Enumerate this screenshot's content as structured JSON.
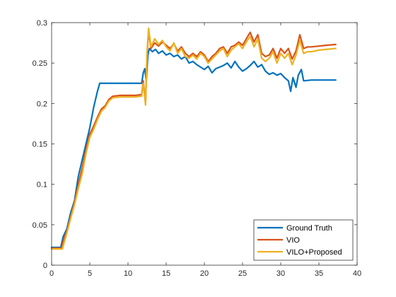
{
  "chart_data": {
    "type": "line",
    "title": "",
    "xlabel": "",
    "ylabel": "",
    "xlim": [
      0,
      40
    ],
    "ylim": [
      0,
      0.3
    ],
    "xticks": [
      0,
      5,
      10,
      15,
      20,
      25,
      30,
      35,
      40
    ],
    "yticks": [
      0,
      0.05,
      0.1,
      0.15,
      0.2,
      0.25,
      0.3
    ],
    "grid": false,
    "legend_position": "bottom-right",
    "series": [
      {
        "name": "Ground Truth",
        "color": "#0072BD",
        "points": [
          [
            0.0,
            0.022
          ],
          [
            1.0,
            0.022
          ],
          [
            1.2,
            0.022
          ],
          [
            1.5,
            0.035
          ],
          [
            2.0,
            0.045
          ],
          [
            2.5,
            0.065
          ],
          [
            3.0,
            0.08
          ],
          [
            3.5,
            0.11
          ],
          [
            4.0,
            0.13
          ],
          [
            4.5,
            0.15
          ],
          [
            5.0,
            0.17
          ],
          [
            5.5,
            0.195
          ],
          [
            6.0,
            0.215
          ],
          [
            6.3,
            0.225
          ],
          [
            7.0,
            0.225
          ],
          [
            8.0,
            0.225
          ],
          [
            9.0,
            0.225
          ],
          [
            10.0,
            0.225
          ],
          [
            11.0,
            0.225
          ],
          [
            11.8,
            0.225
          ],
          [
            12.0,
            0.238
          ],
          [
            12.2,
            0.243
          ],
          [
            12.4,
            0.228
          ],
          [
            12.6,
            0.26
          ],
          [
            12.8,
            0.268
          ],
          [
            13.2,
            0.264
          ],
          [
            13.6,
            0.267
          ],
          [
            14.0,
            0.262
          ],
          [
            14.5,
            0.265
          ],
          [
            15.0,
            0.26
          ],
          [
            15.5,
            0.262
          ],
          [
            16.0,
            0.258
          ],
          [
            16.5,
            0.26
          ],
          [
            17.0,
            0.255
          ],
          [
            17.5,
            0.258
          ],
          [
            18.0,
            0.25
          ],
          [
            18.5,
            0.252
          ],
          [
            19.0,
            0.248
          ],
          [
            19.5,
            0.245
          ],
          [
            20.0,
            0.242
          ],
          [
            20.5,
            0.246
          ],
          [
            21.0,
            0.238
          ],
          [
            21.5,
            0.243
          ],
          [
            22.0,
            0.245
          ],
          [
            22.5,
            0.247
          ],
          [
            23.0,
            0.25
          ],
          [
            23.5,
            0.244
          ],
          [
            24.0,
            0.252
          ],
          [
            24.5,
            0.245
          ],
          [
            25.0,
            0.24
          ],
          [
            25.5,
            0.243
          ],
          [
            26.0,
            0.247
          ],
          [
            26.5,
            0.252
          ],
          [
            27.0,
            0.245
          ],
          [
            27.5,
            0.248
          ],
          [
            28.0,
            0.24
          ],
          [
            28.5,
            0.236
          ],
          [
            29.0,
            0.238
          ],
          [
            29.5,
            0.235
          ],
          [
            30.0,
            0.237
          ],
          [
            30.5,
            0.232
          ],
          [
            31.0,
            0.228
          ],
          [
            31.3,
            0.215
          ],
          [
            31.6,
            0.232
          ],
          [
            32.0,
            0.22
          ],
          [
            32.3,
            0.235
          ],
          [
            32.7,
            0.242
          ],
          [
            33.0,
            0.228
          ],
          [
            34.0,
            0.229
          ],
          [
            35.0,
            0.229
          ],
          [
            36.0,
            0.229
          ],
          [
            37.2,
            0.229
          ]
        ]
      },
      {
        "name": "VIO",
        "color": "#D95319",
        "points": [
          [
            0.0,
            0.021
          ],
          [
            1.0,
            0.021
          ],
          [
            1.3,
            0.021
          ],
          [
            1.6,
            0.033
          ],
          [
            2.0,
            0.042
          ],
          [
            2.5,
            0.06
          ],
          [
            3.0,
            0.078
          ],
          [
            3.5,
            0.1
          ],
          [
            4.0,
            0.12
          ],
          [
            4.5,
            0.143
          ],
          [
            5.0,
            0.162
          ],
          [
            5.5,
            0.172
          ],
          [
            6.0,
            0.183
          ],
          [
            6.5,
            0.193
          ],
          [
            7.0,
            0.197
          ],
          [
            7.5,
            0.205
          ],
          [
            8.0,
            0.209
          ],
          [
            9.0,
            0.21
          ],
          [
            10.0,
            0.21
          ],
          [
            11.0,
            0.21
          ],
          [
            11.8,
            0.211
          ],
          [
            12.0,
            0.228
          ],
          [
            12.3,
            0.2
          ],
          [
            12.5,
            0.262
          ],
          [
            12.7,
            0.29
          ],
          [
            13.0,
            0.268
          ],
          [
            13.5,
            0.275
          ],
          [
            14.0,
            0.271
          ],
          [
            14.5,
            0.276
          ],
          [
            15.0,
            0.272
          ],
          [
            15.5,
            0.268
          ],
          [
            16.0,
            0.274
          ],
          [
            16.5,
            0.265
          ],
          [
            17.0,
            0.27
          ],
          [
            17.5,
            0.262
          ],
          [
            18.0,
            0.258
          ],
          [
            18.5,
            0.262
          ],
          [
            19.0,
            0.258
          ],
          [
            19.5,
            0.264
          ],
          [
            20.0,
            0.26
          ],
          [
            20.5,
            0.252
          ],
          [
            21.0,
            0.258
          ],
          [
            21.5,
            0.262
          ],
          [
            22.0,
            0.268
          ],
          [
            22.5,
            0.27
          ],
          [
            23.0,
            0.262
          ],
          [
            23.5,
            0.27
          ],
          [
            24.0,
            0.272
          ],
          [
            24.5,
            0.276
          ],
          [
            25.0,
            0.272
          ],
          [
            25.5,
            0.28
          ],
          [
            26.0,
            0.288
          ],
          [
            26.5,
            0.276
          ],
          [
            27.0,
            0.285
          ],
          [
            27.5,
            0.262
          ],
          [
            28.0,
            0.258
          ],
          [
            28.5,
            0.26
          ],
          [
            29.0,
            0.268
          ],
          [
            29.5,
            0.256
          ],
          [
            30.0,
            0.268
          ],
          [
            30.5,
            0.262
          ],
          [
            31.0,
            0.268
          ],
          [
            31.5,
            0.255
          ],
          [
            32.0,
            0.265
          ],
          [
            32.5,
            0.285
          ],
          [
            33.0,
            0.268
          ],
          [
            33.5,
            0.27
          ],
          [
            34.0,
            0.27
          ],
          [
            35.0,
            0.271
          ],
          [
            36.0,
            0.272
          ],
          [
            37.2,
            0.273
          ]
        ]
      },
      {
        "name": "VILO+Proposed",
        "color": "#EDB120",
        "points": [
          [
            0.0,
            0.02
          ],
          [
            1.0,
            0.02
          ],
          [
            1.4,
            0.02
          ],
          [
            1.7,
            0.03
          ],
          [
            2.0,
            0.04
          ],
          [
            2.5,
            0.058
          ],
          [
            3.0,
            0.075
          ],
          [
            3.5,
            0.095
          ],
          [
            4.0,
            0.113
          ],
          [
            4.5,
            0.138
          ],
          [
            5.0,
            0.158
          ],
          [
            5.5,
            0.168
          ],
          [
            6.0,
            0.18
          ],
          [
            6.5,
            0.19
          ],
          [
            7.0,
            0.195
          ],
          [
            7.5,
            0.203
          ],
          [
            8.0,
            0.207
          ],
          [
            9.0,
            0.208
          ],
          [
            10.0,
            0.208
          ],
          [
            11.0,
            0.208
          ],
          [
            11.8,
            0.209
          ],
          [
            12.0,
            0.225
          ],
          [
            12.3,
            0.198
          ],
          [
            12.5,
            0.265
          ],
          [
            12.7,
            0.293
          ],
          [
            13.0,
            0.27
          ],
          [
            13.5,
            0.28
          ],
          [
            14.0,
            0.273
          ],
          [
            14.5,
            0.278
          ],
          [
            15.0,
            0.27
          ],
          [
            15.5,
            0.265
          ],
          [
            16.0,
            0.275
          ],
          [
            16.5,
            0.262
          ],
          [
            17.0,
            0.268
          ],
          [
            17.5,
            0.258
          ],
          [
            18.0,
            0.256
          ],
          [
            18.5,
            0.26
          ],
          [
            19.0,
            0.255
          ],
          [
            19.5,
            0.262
          ],
          [
            20.0,
            0.258
          ],
          [
            20.5,
            0.25
          ],
          [
            21.0,
            0.255
          ],
          [
            21.5,
            0.26
          ],
          [
            22.0,
            0.265
          ],
          [
            22.5,
            0.268
          ],
          [
            23.0,
            0.258
          ],
          [
            23.5,
            0.266
          ],
          [
            24.0,
            0.27
          ],
          [
            24.5,
            0.274
          ],
          [
            25.0,
            0.268
          ],
          [
            25.5,
            0.276
          ],
          [
            26.0,
            0.283
          ],
          [
            26.5,
            0.27
          ],
          [
            27.0,
            0.28
          ],
          [
            27.5,
            0.256
          ],
          [
            28.0,
            0.252
          ],
          [
            28.5,
            0.256
          ],
          [
            29.0,
            0.264
          ],
          [
            29.5,
            0.25
          ],
          [
            30.0,
            0.262
          ],
          [
            30.5,
            0.256
          ],
          [
            31.0,
            0.262
          ],
          [
            31.5,
            0.248
          ],
          [
            32.0,
            0.26
          ],
          [
            32.5,
            0.278
          ],
          [
            33.0,
            0.262
          ],
          [
            33.5,
            0.264
          ],
          [
            34.0,
            0.264
          ],
          [
            35.0,
            0.266
          ],
          [
            36.0,
            0.267
          ],
          [
            37.2,
            0.268
          ]
        ]
      }
    ]
  }
}
